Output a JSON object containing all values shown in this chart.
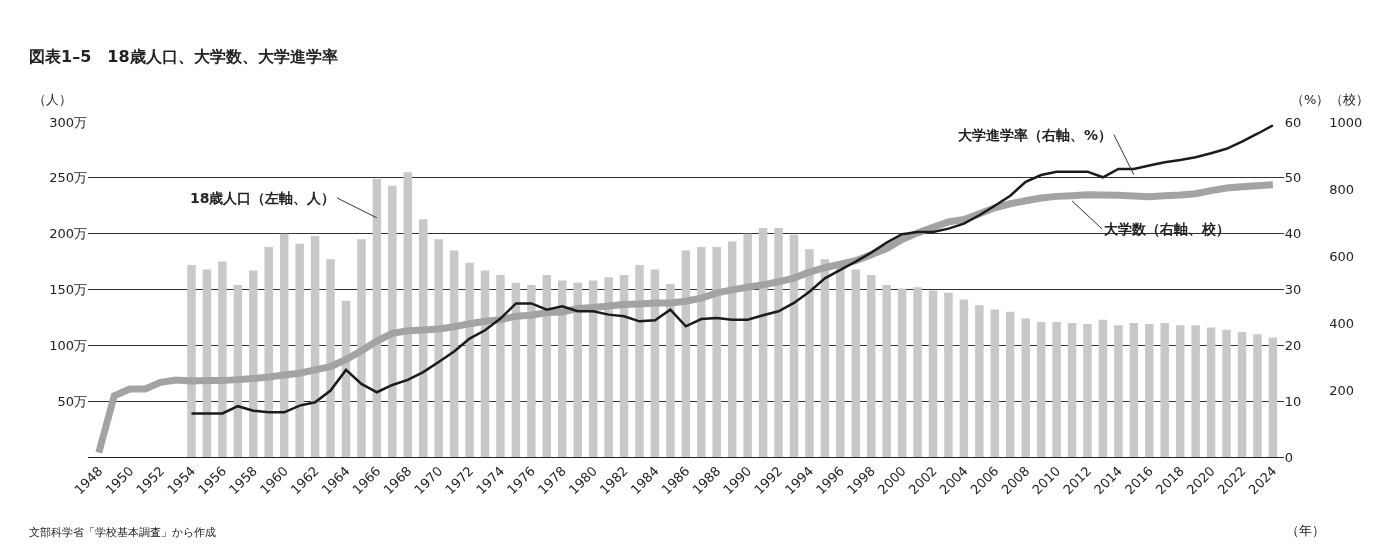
{
  "chart_data": {
    "type": "bar",
    "title": "図表1–5　18歳人口、大学数、大学進学率",
    "ylabel": "（人）",
    "y2label": "（%）",
    "y3label": "（校）",
    "xlabel": "（年）",
    "x": [
      1948,
      1949,
      1950,
      1951,
      1952,
      1953,
      1954,
      1955,
      1956,
      1957,
      1958,
      1959,
      1960,
      1961,
      1962,
      1963,
      1964,
      1965,
      1966,
      1967,
      1968,
      1969,
      1970,
      1971,
      1972,
      1973,
      1974,
      1975,
      1976,
      1977,
      1978,
      1979,
      1980,
      1981,
      1982,
      1983,
      1984,
      1985,
      1986,
      1987,
      1988,
      1989,
      1990,
      1991,
      1992,
      1993,
      1994,
      1995,
      1996,
      1997,
      1998,
      1999,
      2000,
      2001,
      2002,
      2003,
      2004,
      2005,
      2006,
      2007,
      2008,
      2009,
      2010,
      2011,
      2012,
      2013,
      2014,
      2015,
      2016,
      2017,
      2018,
      2019,
      2020,
      2021,
      2022,
      2023,
      2024
    ],
    "xlim": [
      1947.3,
      2024.7
    ],
    "xticks": [
      1948,
      1950,
      1952,
      1954,
      1956,
      1958,
      1960,
      1962,
      1964,
      1966,
      1968,
      1970,
      1972,
      1974,
      1976,
      1978,
      1980,
      1982,
      1984,
      1986,
      1988,
      1990,
      1992,
      1994,
      1996,
      1998,
      2000,
      2002,
      2004,
      2006,
      2008,
      2010,
      2012,
      2014,
      2016,
      2018,
      2020,
      2022,
      2024
    ],
    "series": [
      {
        "name": "18歳人口（左軸、人）",
        "color": "#c8c8c8",
        "values": [
          null,
          null,
          null,
          null,
          null,
          null,
          172,
          168,
          175,
          154,
          167,
          188,
          200,
          191,
          198,
          177,
          140,
          195,
          249,
          243,
          255,
          213,
          195,
          185,
          174,
          167,
          163,
          156,
          154,
          163,
          158,
          156,
          158,
          161,
          163,
          172,
          168,
          155,
          185,
          188,
          188,
          193,
          200,
          205,
          205,
          199,
          186,
          177,
          173,
          168,
          163,
          154,
          151,
          152,
          149,
          147,
          141,
          136,
          132,
          130,
          124,
          121,
          121,
          120,
          119,
          123,
          118,
          120,
          119,
          120,
          118,
          118,
          116,
          114,
          112,
          110,
          107
        ]
      },
      {
        "name": "大学進学率（右軸、%）",
        "type": "line",
        "axis": "y2",
        "color": "#1e1a1a",
        "values": [
          null,
          null,
          null,
          null,
          null,
          null,
          7.8,
          7.8,
          7.8,
          9.1,
          8.3,
          8.0,
          8.0,
          9.2,
          9.8,
          11.9,
          15.6,
          13.1,
          11.6,
          12.9,
          13.8,
          15.2,
          17.0,
          18.9,
          21.2,
          22.7,
          24.8,
          27.5,
          27.5,
          26.4,
          27.0,
          26.1,
          26.1,
          25.5,
          25.2,
          24.3,
          24.5,
          26.4,
          23.4,
          24.7,
          24.9,
          24.6,
          24.6,
          25.4,
          26.1,
          27.6,
          29.6,
          32.0,
          33.5,
          35.0,
          36.6,
          38.4,
          39.9,
          40.3,
          40.3,
          40.9,
          41.8,
          43.3,
          45.0,
          46.8,
          49.3,
          50.5,
          51.1,
          51.1,
          51.1,
          50.1,
          51.6,
          51.6,
          52.2,
          52.8,
          53.2,
          53.7,
          54.4,
          55.2,
          56.5,
          57.9,
          59.4
        ]
      },
      {
        "name": "大学数（右軸、校）",
        "type": "line",
        "axis": "y3",
        "color": "#a3a3a3",
        "values": [
          13,
          183,
          203,
          203,
          223,
          230,
          227,
          228,
          228,
          231,
          234,
          239,
          245,
          250,
          260,
          270,
          291,
          317,
          346,
          369,
          377,
          379,
          382,
          389,
          398,
          405,
          410,
          420,
          423,
          431,
          433,
          443,
          446,
          451,
          455,
          457,
          460,
          460,
          465,
          474,
          490,
          499,
          507,
          514,
          523,
          534,
          552,
          565,
          576,
          586,
          604,
          622,
          649,
          669,
          686,
          702,
          709,
          726,
          744,
          756,
          765,
          773,
          778,
          780,
          783,
          782,
          781,
          779,
          777,
          780,
          782,
          786,
          795,
          803,
          807,
          810,
          813
        ]
      }
    ],
    "ylim": [
      0,
      300
    ],
    "yticks": [
      {
        "value": 50,
        "label": "50万"
      },
      {
        "value": 100,
        "label": "100万"
      },
      {
        "value": 150,
        "label": "150万"
      },
      {
        "value": 200,
        "label": "200万"
      },
      {
        "value": 250,
        "label": "250万"
      },
      {
        "value": 300,
        "label": "300万"
      }
    ],
    "y2lim": [
      0,
      60
    ],
    "y2ticks": [
      0,
      10,
      20,
      30,
      40,
      50,
      60
    ],
    "y3lim": [
      0,
      1000
    ],
    "y3ticks": [
      200,
      400,
      600,
      800,
      1000
    ],
    "grid": "y",
    "legend": false,
    "annotations": [
      "文部科学省「学校基本調査」から作成"
    ]
  }
}
